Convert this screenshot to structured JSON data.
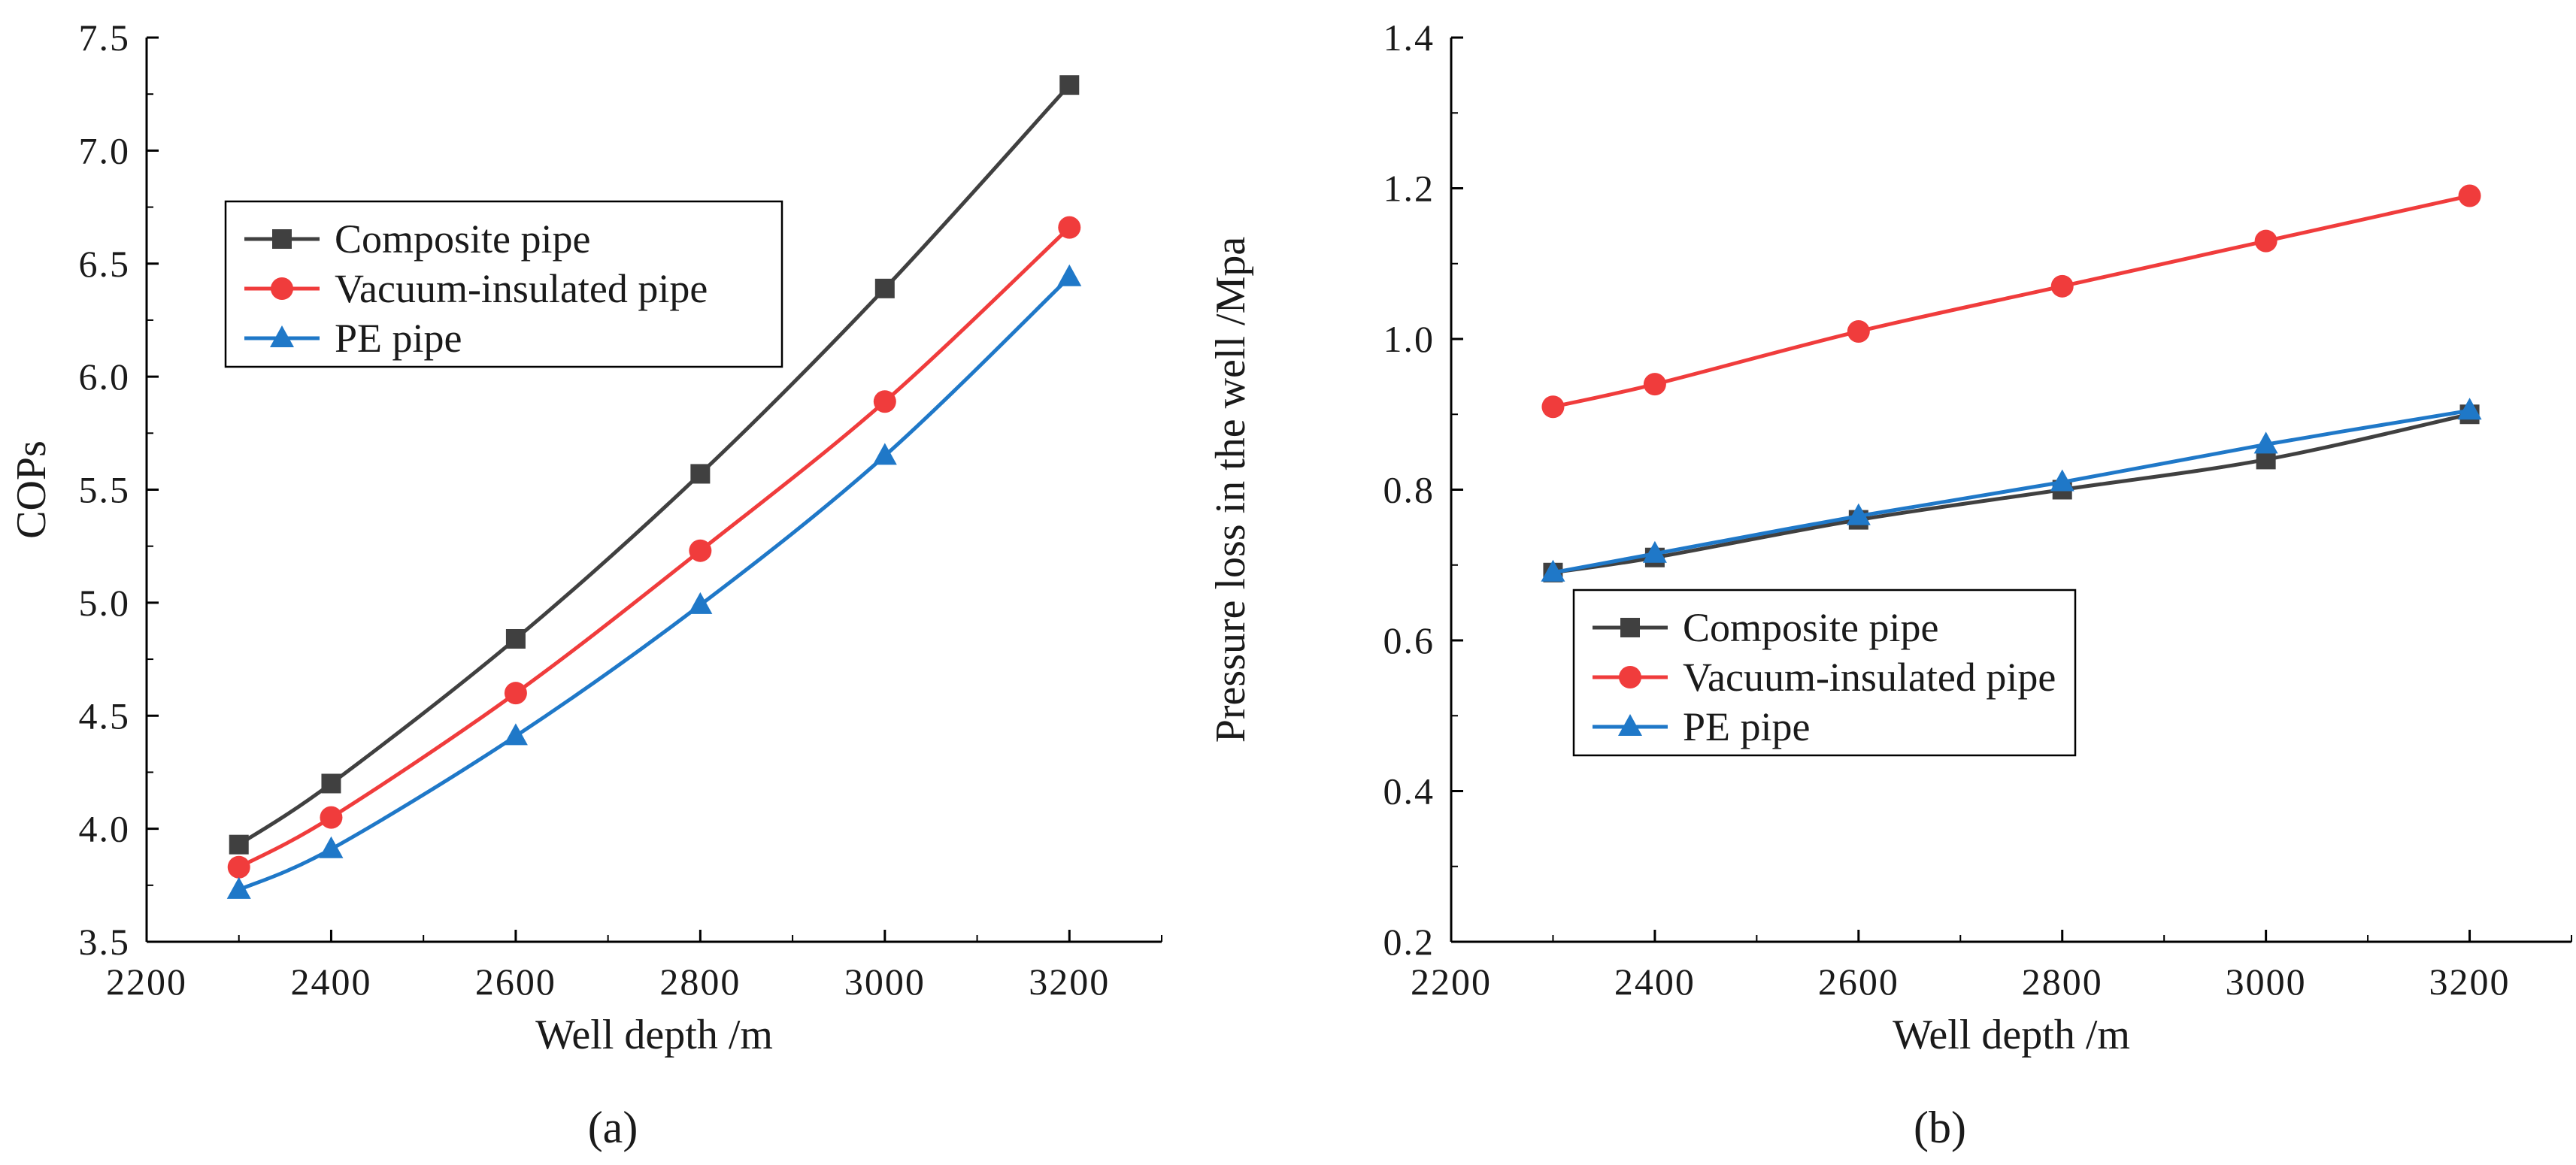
{
  "chart_data": [
    {
      "type": "line",
      "panel_label": "(a)",
      "xlabel": "Well depth /m",
      "ylabel": "COPs",
      "xlim": [
        2200,
        3300
      ],
      "ylim": [
        3.5,
        7.5
      ],
      "xticks": [
        2200,
        2400,
        2600,
        2800,
        3000,
        3200
      ],
      "yticks": [
        3.5,
        4.0,
        4.5,
        5.0,
        5.5,
        6.0,
        6.5,
        7.0,
        7.5
      ],
      "ytick_labels": [
        "3.5",
        "4.0",
        "4.5",
        "5.0",
        "5.5",
        "6.0",
        "6.5",
        "7.0",
        "7.5"
      ],
      "legend_position": "upper-left",
      "x": [
        2300,
        2400,
        2600,
        2800,
        3000,
        3200
      ],
      "series": [
        {
          "name": "Composite pipe",
          "color": "#404040",
          "marker": "square",
          "values": [
            3.93,
            4.2,
            4.84,
            5.57,
            6.39,
            7.29
          ]
        },
        {
          "name": "Vacuum-insulated pipe",
          "color": "#f03c3c",
          "marker": "circle",
          "values": [
            3.83,
            4.05,
            4.6,
            5.23,
            5.89,
            6.66
          ]
        },
        {
          "name": "PE pipe",
          "color": "#1f78c8",
          "marker": "triangle",
          "values": [
            3.73,
            3.91,
            4.41,
            4.99,
            5.65,
            6.44
          ]
        }
      ]
    },
    {
      "type": "line",
      "panel_label": "(b)",
      "xlabel": "Well depth /m",
      "ylabel": "Pressure loss in the well /Mpa",
      "xlim": [
        2200,
        3300
      ],
      "ylim": [
        0.2,
        1.4
      ],
      "xticks": [
        2200,
        2400,
        2600,
        2800,
        3000,
        3200
      ],
      "yticks": [
        0.2,
        0.4,
        0.6,
        0.8,
        1.0,
        1.2,
        1.4
      ],
      "ytick_labels": [
        "0.2",
        "0.4",
        "0.6",
        "0.8",
        "1.0",
        "1.2",
        "1.4"
      ],
      "legend_position": "lower-center",
      "x": [
        2300,
        2400,
        2600,
        2800,
        3000,
        3200
      ],
      "series": [
        {
          "name": "Composite pipe",
          "color": "#404040",
          "marker": "square",
          "values": [
            0.69,
            0.71,
            0.76,
            0.8,
            0.84,
            0.9
          ]
        },
        {
          "name": "Vacuum-insulated pipe",
          "color": "#f03c3c",
          "marker": "circle",
          "values": [
            0.91,
            0.94,
            1.01,
            1.07,
            1.13,
            1.19
          ]
        },
        {
          "name": "PE pipe",
          "color": "#1f78c8",
          "marker": "triangle",
          "values": [
            0.69,
            0.715,
            0.765,
            0.81,
            0.86,
            0.905
          ]
        }
      ]
    }
  ]
}
